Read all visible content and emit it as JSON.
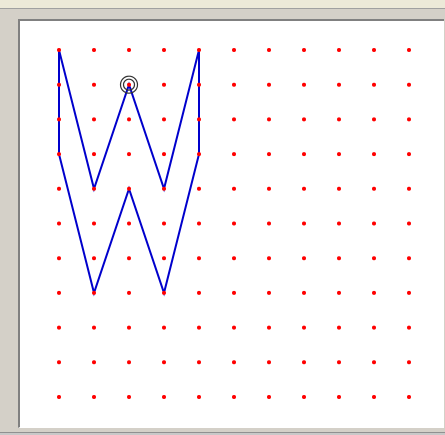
{
  "app": {
    "title": ""
  },
  "geoboard": {
    "columns": 11,
    "rows": 11,
    "peg_color": "#ff0000",
    "band_color": "#0000cc",
    "band_points": [
      [
        0,
        0
      ],
      [
        1,
        4
      ],
      [
        2,
        1
      ],
      [
        3,
        4
      ],
      [
        4,
        0
      ],
      [
        4,
        3
      ],
      [
        3,
        7
      ],
      [
        2,
        4
      ],
      [
        1,
        7
      ],
      [
        0,
        3
      ]
    ],
    "selected_peg": [
      2,
      1
    ],
    "selection_color": "#333333"
  }
}
